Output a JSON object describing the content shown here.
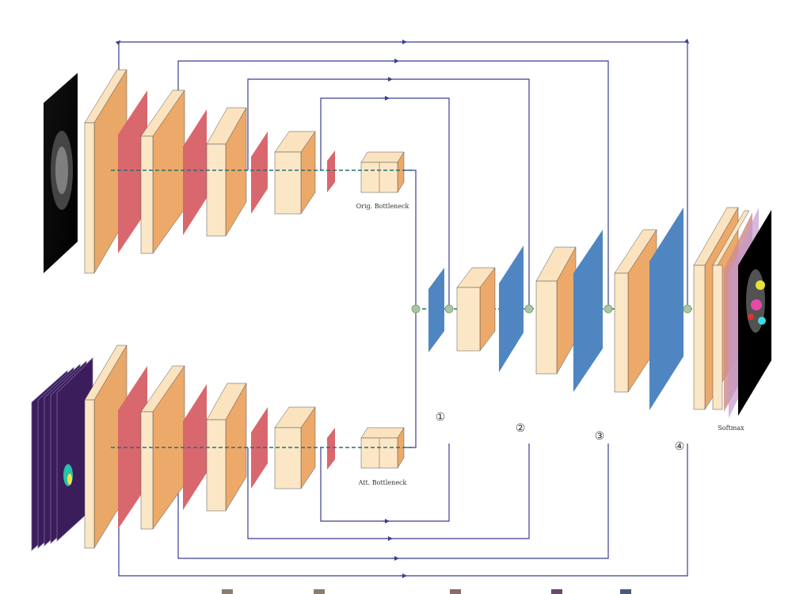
{
  "labels": {
    "orig_bottleneck": "Orig. Bottleneck",
    "att_bottleneck": "Att. Bottleneck",
    "softmax": "Softmax",
    "skip_1": "①",
    "skip_2": "②",
    "skip_3": "③",
    "skip_4": "④"
  },
  "colors": {
    "conv_block": "#f7c48a",
    "pool": "#d9676e",
    "upconv": "#4f86c1",
    "connection": "#3c3f8f",
    "skip_node": "#a8c7a0",
    "input_image": "#000000",
    "attention_image": "#3b1d5c"
  },
  "icons": {
    "input_ct": "ct-slice-image",
    "input_attention": "attention-map-stack",
    "output_segmentation": "segmentation-output-image",
    "concat_node": "concat-node-icon"
  }
}
